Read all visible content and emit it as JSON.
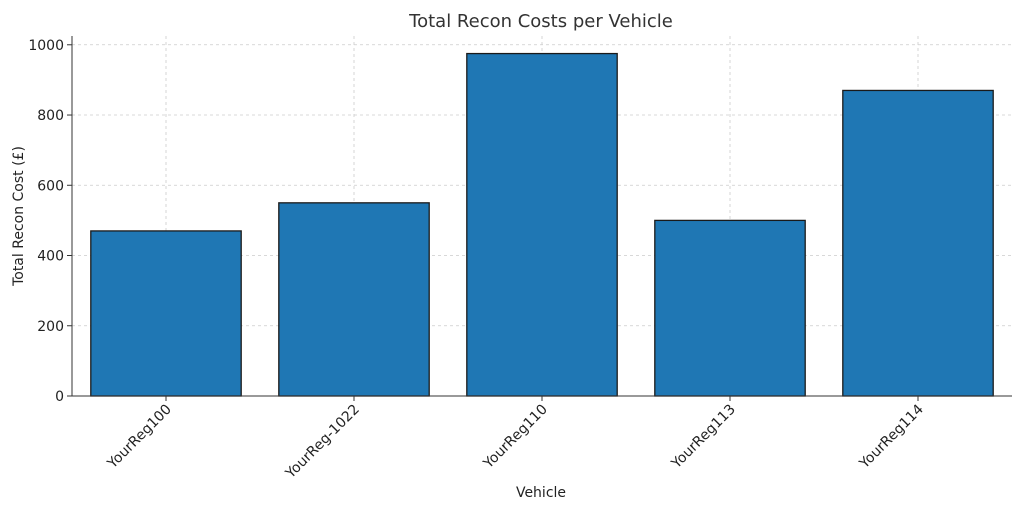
{
  "chart_data": {
    "type": "bar",
    "title": "Total Recon Costs per Vehicle",
    "xlabel": "Vehicle",
    "ylabel": "Total Recon Cost (£)",
    "categories": [
      "YourReg100",
      "YourReg-1022",
      "YourReg110",
      "YourReg113",
      "YourReg114"
    ],
    "values": [
      470,
      550,
      975,
      500,
      870
    ],
    "ylim": [
      0,
      1025
    ],
    "yticks": [
      0,
      200,
      400,
      600,
      800,
      1000
    ],
    "grid": true,
    "bar_color": "#1f77b4",
    "bar_edge_color": "#1a1a1a"
  }
}
